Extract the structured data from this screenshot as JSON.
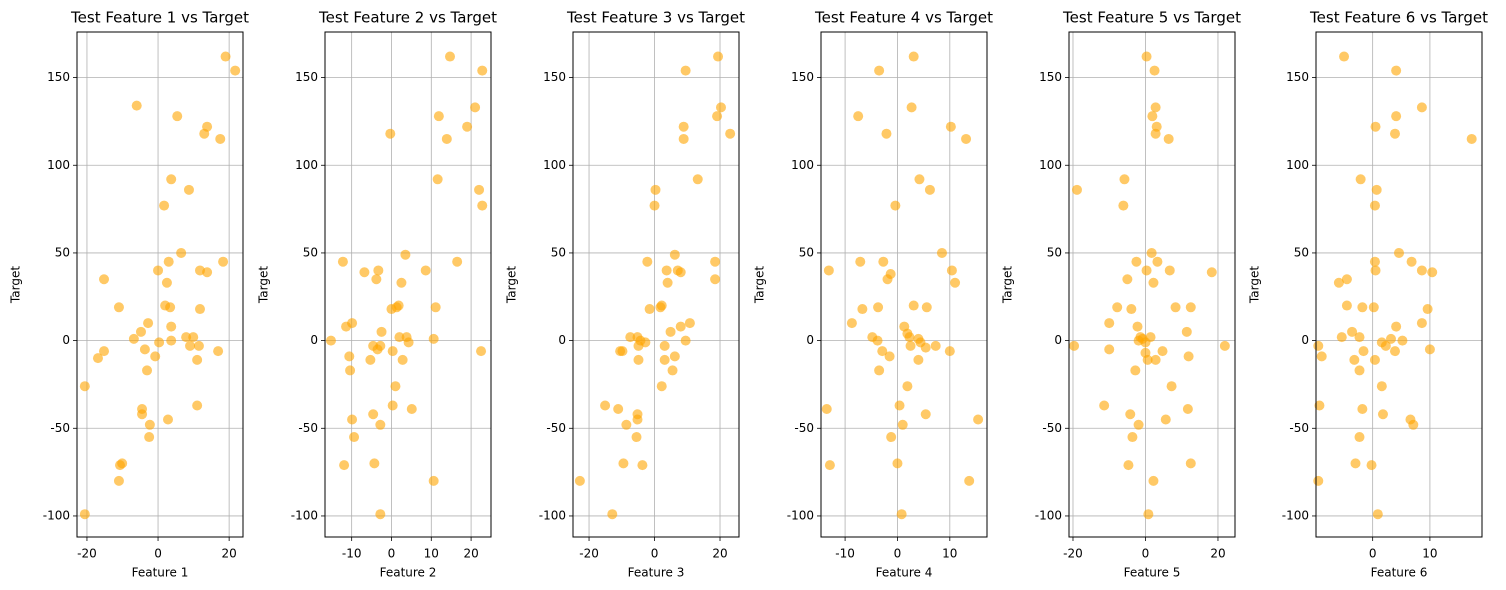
{
  "chart_data": [
    {
      "type": "scatter",
      "title": "Test Feature 1 vs Target",
      "x_label": "Feature 1",
      "y_label": "Target",
      "color": "orange",
      "alpha": 0.6,
      "grid": true,
      "xlim": [
        -22.8,
        23.9
      ],
      "ylim": [
        -112,
        176
      ],
      "xticks": [
        -20,
        0,
        20
      ],
      "yticks": [
        -100,
        -50,
        0,
        50,
        100,
        150
      ],
      "x": [
        19,
        21.7,
        -6,
        5.4,
        13.8,
        13,
        17.5,
        3.7,
        8.7,
        1.7,
        6.5,
        18.3,
        3,
        0,
        11.8,
        13.8,
        -15.2,
        2.5,
        2,
        3.4,
        -11,
        11.8,
        -2.8,
        3.7,
        -4.8,
        7.9,
        9.9,
        -6.8,
        3.7,
        0.3,
        9,
        11.5,
        -3.7,
        -15.2,
        16.9,
        -0.8,
        -16.9,
        11,
        -3.1,
        -20.6,
        11,
        -4.5,
        -4.5,
        2.8,
        -2.3,
        -2.5,
        -10.7,
        -10.1,
        -11,
        -20.6
      ],
      "y": [
        162,
        154,
        134,
        128,
        122,
        118,
        115,
        92,
        86,
        77,
        50,
        45,
        45,
        40,
        40,
        39,
        35,
        33,
        20,
        19,
        19,
        18,
        10,
        8,
        5,
        2,
        2,
        1,
        0,
        -1,
        -3,
        -3,
        -5,
        -6,
        -6,
        -9,
        -10,
        -11,
        -17,
        -26,
        -37,
        -39,
        -42,
        -45,
        -48,
        -55,
        -71,
        -70,
        -80,
        -99
      ]
    },
    {
      "type": "scatter",
      "title": "Test Feature 2 vs Target",
      "x_label": "Feature 2",
      "y_label": "Target",
      "color": "orange",
      "alpha": 0.6,
      "grid": true,
      "xlim": [
        -16.7,
        25
      ],
      "ylim": [
        -112,
        176
      ],
      "xticks": [
        -10,
        0,
        10,
        20
      ],
      "yticks": [
        -100,
        -50,
        0,
        50,
        100,
        150
      ],
      "x": [
        14.7,
        22.8,
        21,
        11.9,
        19,
        -0.3,
        13.9,
        11.6,
        22,
        22.8,
        3.5,
        -12.2,
        16.5,
        8.6,
        -3.3,
        -6.8,
        -3.8,
        2.5,
        1.8,
        1.3,
        11.1,
        0,
        -9.9,
        -11.4,
        -2.5,
        2,
        3.8,
        10.6,
        -15.2,
        4.3,
        -4.6,
        -2.8,
        -3.5,
        22.5,
        0.3,
        -10.6,
        2.8,
        -5.3,
        -10.4,
        1,
        0.3,
        5.1,
        -4.6,
        -9.9,
        -2.8,
        -9.4,
        -11.9,
        -4.3,
        10.6,
        -2.8
      ],
      "y": [
        162,
        154,
        133,
        128,
        122,
        118,
        115,
        92,
        86,
        77,
        49,
        45,
        45,
        40,
        40,
        39,
        35,
        33,
        20,
        19,
        19,
        18,
        10,
        8,
        5,
        2,
        2,
        1,
        0,
        -1,
        -3,
        -3,
        -5,
        -6,
        -6,
        -9,
        -11,
        -11,
        -17,
        -26,
        -37,
        -39,
        -42,
        -45,
        -48,
        -55,
        -71,
        -70,
        -80,
        -99
      ]
    },
    {
      "type": "scatter",
      "title": "Test Feature 3 vs Target",
      "x_label": "Feature 3",
      "y_label": "Target",
      "color": "orange",
      "alpha": 0.6,
      "grid": true,
      "xlim": [
        -24.9,
        25.8
      ],
      "ylim": [
        -112,
        176
      ],
      "xticks": [
        -20,
        0,
        20
      ],
      "yticks": [
        -100,
        -50,
        0,
        50,
        100,
        150
      ],
      "x": [
        19.4,
        9.5,
        20.3,
        19.1,
        8.9,
        23.1,
        8.9,
        13.2,
        0.3,
        0,
        6.2,
        -2.2,
        18.5,
        7.1,
        3.7,
        8,
        18.5,
        4,
        2.2,
        1.8,
        -1.5,
        10.8,
        8,
        4.9,
        -7.4,
        -5.2,
        -4.3,
        9.5,
        -2.8,
        -4.9,
        3.1,
        -9.8,
        -10.5,
        6.2,
        -4.9,
        3.1,
        5.5,
        2.2,
        -15.1,
        -11.1,
        -5.2,
        -5.2,
        -8.6,
        -5.5,
        -3.7,
        -9.5,
        -22.8,
        -12.9
      ],
      "y": [
        162,
        154,
        133,
        128,
        122,
        118,
        115,
        92,
        86,
        77,
        49,
        45,
        45,
        40,
        40,
        39,
        35,
        33,
        20,
        19,
        18,
        10,
        8,
        5,
        2,
        2,
        0,
        0,
        -1,
        -3,
        -3,
        -6,
        -6,
        -9,
        -11,
        -11,
        -17,
        -26,
        -37,
        -39,
        -42,
        -45,
        -48,
        -55,
        -71,
        -70,
        -80,
        -99
      ]
    },
    {
      "type": "scatter",
      "title": "Test Feature 4 vs Target",
      "x_label": "Feature 4",
      "y_label": "Target",
      "color": "orange",
      "alpha": 0.6,
      "grid": true,
      "xlim": [
        -14.6,
        17.1
      ],
      "ylim": [
        -112,
        176
      ],
      "xticks": [
        -10,
        0,
        10
      ],
      "yticks": [
        -100,
        -50,
        0,
        50,
        100,
        150
      ],
      "x": [
        3.1,
        -3.5,
        2.7,
        -7.5,
        10.2,
        -2.1,
        13.1,
        4.2,
        6.2,
        -0.4,
        8.5,
        -7.1,
        -2.7,
        -13.1,
        10.4,
        -1.3,
        -1.9,
        11,
        -6.7,
        -3.7,
        3.1,
        5.6,
        -8.7,
        1.3,
        1.9,
        -4.8,
        2.3,
        4,
        -3.8,
        4.4,
        2.5,
        7.3,
        5.4,
        -2.9,
        10,
        -1.5,
        4,
        -3.5,
        1.9,
        0.4,
        -13.5,
        5.4,
        15.4,
        1,
        -1.2,
        0,
        -12.9,
        13.7,
        0.8
      ],
      "y": [
        162,
        154,
        133,
        128,
        122,
        118,
        115,
        92,
        86,
        77,
        50,
        45,
        45,
        40,
        40,
        38,
        35,
        33,
        18,
        19,
        20,
        19,
        10,
        8,
        4,
        2,
        2,
        1,
        0,
        -1,
        -3,
        -3,
        -4,
        -6,
        -6,
        -9,
        -11,
        -17,
        -26,
        -37,
        -39,
        -42,
        -45,
        -48,
        -55,
        -70,
        -71,
        -80,
        -99
      ]
    },
    {
      "type": "scatter",
      "title": "Test Feature 5 vs Target",
      "x_label": "Feature 5",
      "y_label": "Target",
      "color": "orange",
      "alpha": 0.6,
      "grid": true,
      "xlim": [
        -21.1,
        24.7
      ],
      "ylim": [
        -112,
        176
      ],
      "xticks": [
        -20,
        0,
        20
      ],
      "yticks": [
        -100,
        -50,
        0,
        50,
        100,
        150
      ],
      "x": [
        0.3,
        2.5,
        2.8,
        1.9,
        3.1,
        2.8,
        6.4,
        -5.8,
        -18.9,
        -6.1,
        1.7,
        -2.5,
        3.3,
        0.3,
        6.7,
        18.3,
        -5,
        2.2,
        8.3,
        12.5,
        -7.8,
        -3.9,
        -10,
        -2.2,
        11.4,
        -1.4,
        1.4,
        -0.8,
        -1.9,
        0,
        21.9,
        -19.7,
        -10,
        4.7,
        0,
        11.9,
        2.8,
        0.6,
        -2.8,
        7.2,
        -11.4,
        11.7,
        -4.2,
        5.6,
        -1.9,
        -3.6,
        12.5,
        -4.7,
        2.2,
        0.8
      ],
      "y": [
        162,
        154,
        133,
        128,
        122,
        118,
        115,
        92,
        86,
        77,
        50,
        45,
        45,
        40,
        40,
        39,
        35,
        33,
        19,
        19,
        19,
        18,
        10,
        8,
        5,
        2,
        2,
        1,
        0,
        -1,
        -3,
        -3,
        -5,
        -6,
        -7,
        -9,
        -11,
        -11,
        -17,
        -26,
        -37,
        -39,
        -42,
        -45,
        -48,
        -55,
        -70,
        -71,
        -80,
        -99
      ]
    },
    {
      "type": "scatter",
      "title": "Test Feature 6 vs Target",
      "x_label": "Feature 6",
      "y_label": "Target",
      "color": "orange",
      "alpha": 0.6,
      "grid": true,
      "xlim": [
        -9.9,
        19.1
      ],
      "ylim": [
        -112,
        176
      ],
      "xticks": [
        0,
        10
      ],
      "yticks": [
        -100,
        -50,
        0,
        50,
        100,
        150
      ],
      "x": [
        -5,
        4.1,
        8.6,
        4.1,
        0.5,
        3.9,
        17.3,
        -2.1,
        0.7,
        0.4,
        4.6,
        0.4,
        6.8,
        0.5,
        8.6,
        10.4,
        -4.5,
        -5.9,
        -4.5,
        -1.8,
        0.2,
        9.6,
        8.6,
        4.1,
        -3.6,
        -5.4,
        -2.3,
        3.2,
        5.2,
        1.6,
        -9.5,
        2.3,
        10,
        -1.6,
        3.9,
        -8.9,
        -3.2,
        0.4,
        -2.3,
        1.6,
        -9.3,
        -1.8,
        1.8,
        6.6,
        7.1,
        -2.3,
        -3,
        -0.2,
        -9.5,
        0.9
      ],
      "y": [
        162,
        154,
        133,
        128,
        122,
        118,
        115,
        92,
        86,
        77,
        50,
        45,
        45,
        40,
        40,
        39,
        35,
        33,
        20,
        19,
        19,
        18,
        10,
        8,
        5,
        2,
        2,
        1,
        0,
        -1,
        -3,
        -3,
        -5,
        -6,
        -6,
        -9,
        -11,
        -11,
        -17,
        -26,
        -37,
        -39,
        -42,
        -45,
        -48,
        -55,
        -70,
        -71,
        -80,
        -99
      ]
    }
  ]
}
